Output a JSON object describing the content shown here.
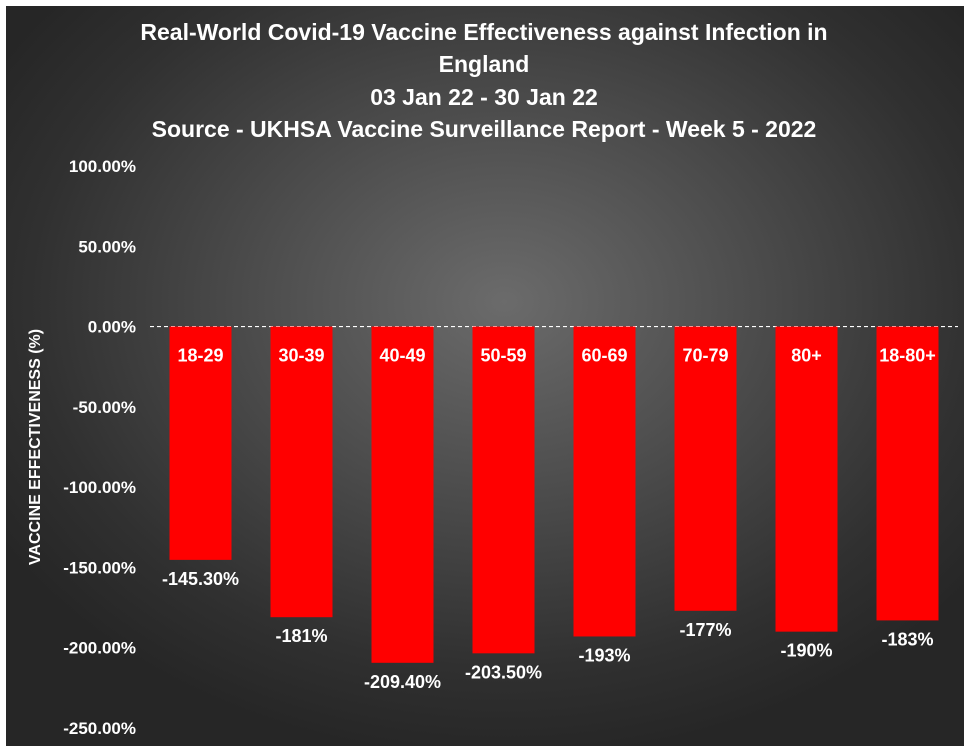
{
  "chart_data": {
    "type": "bar",
    "title_lines": [
      "Real-World Covid-19 Vaccine Effectiveness against Infection in",
      "England",
      "03 Jan 22 - 30 Jan 22",
      "Source - UKHSA Vaccine Surveillance Report - Week 5 - 2022"
    ],
    "ylabel": "VACCINE EFFECTIVENESS (%)",
    "xlabel": "",
    "ylim": [
      -250,
      100
    ],
    "yticks": [
      100,
      50,
      0,
      -50,
      -100,
      -150,
      -200,
      -250
    ],
    "ytick_labels": [
      "100.00%",
      "50.00%",
      "0.00%",
      "-50.00%",
      "-100.00%",
      "-150.00%",
      "-200.00%",
      "-250.00%"
    ],
    "categories": [
      "18-29",
      "30-39",
      "40-49",
      "50-59",
      "60-69",
      "70-79",
      "80+",
      "18-80+"
    ],
    "values": [
      -145.3,
      -181,
      -209.4,
      -203.5,
      -193,
      -177,
      -190,
      -183
    ],
    "value_labels": [
      "-145.30%",
      "-181%",
      "-209.40%",
      "-203.50%",
      "-193%",
      "-177%",
      "-190%",
      "-183%"
    ],
    "bar_color": "#ff0000",
    "background_color": "#4a4a4a",
    "zero_line": "dashed",
    "grid": false,
    "legend": "none"
  }
}
